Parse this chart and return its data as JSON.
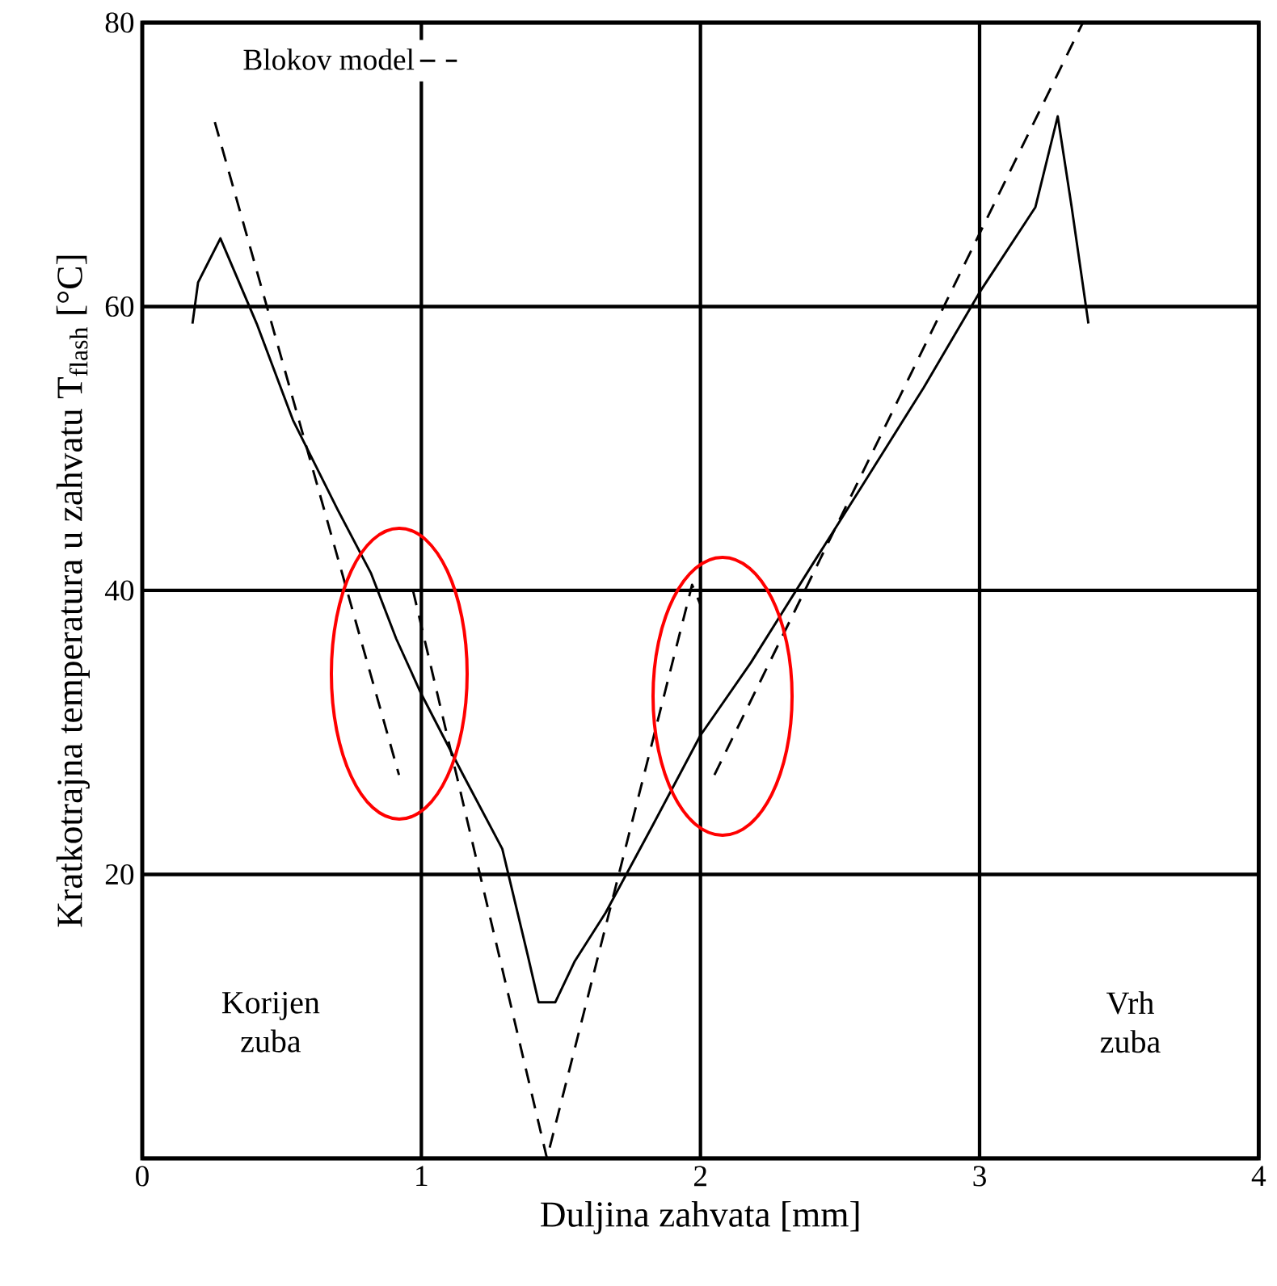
{
  "chart_data": {
    "type": "line",
    "xlabel": "Duljina zahvata [mm]",
    "ylabel": "Kratkotrajna temperatura u zahvatu T$_{flash}$ [°C]",
    "xlim": [
      0,
      4
    ],
    "ylim": [
      0,
      80
    ],
    "xticks": [
      0,
      1,
      2,
      3,
      4
    ],
    "yticks": [
      {
        "value": 0,
        "label": null
      },
      20,
      40,
      60,
      80
    ],
    "grid": true,
    "legend": "top left",
    "marker": "none",
    "annotations": [
      "Korijen\nzuba",
      "Vrh\nzuba"
    ],
    "series": [
      {
        "color": "#000000",
        "line_style": "solid",
        "x": [
          0.18,
          0.2,
          0.28,
          0.41,
          0.54,
          0.7,
          0.82,
          0.91,
          1.0,
          1.15,
          1.29,
          1.38,
          1.42,
          1.48,
          1.55,
          1.66,
          1.83,
          2.0,
          2.18,
          2.4,
          2.58,
          2.8,
          3.0,
          3.2,
          3.28,
          3.33,
          3.39
        ],
        "values": [
          58.8,
          61.7,
          64.8,
          58.8,
          52,
          45.7,
          41.2,
          36.6,
          32.7,
          27,
          21.8,
          14.4,
          11,
          11,
          13.9,
          17.3,
          23.5,
          29.8,
          34.9,
          41.8,
          47.4,
          54.3,
          61,
          67,
          73.4,
          67,
          58.8
        ]
      },
      {
        "name": "Blokov model",
        "color": "#000000",
        "line_style": "dashed",
        "x": [
          0.26,
          0.92,
          0.94,
          0.97,
          1.45,
          1.97,
          2.0,
          2.02,
          2.05,
          3.37
        ],
        "values": [
          73,
          27,
          null,
          40,
          0,
          40.4,
          39,
          null,
          27,
          80
        ]
      }
    ]
  }
}
